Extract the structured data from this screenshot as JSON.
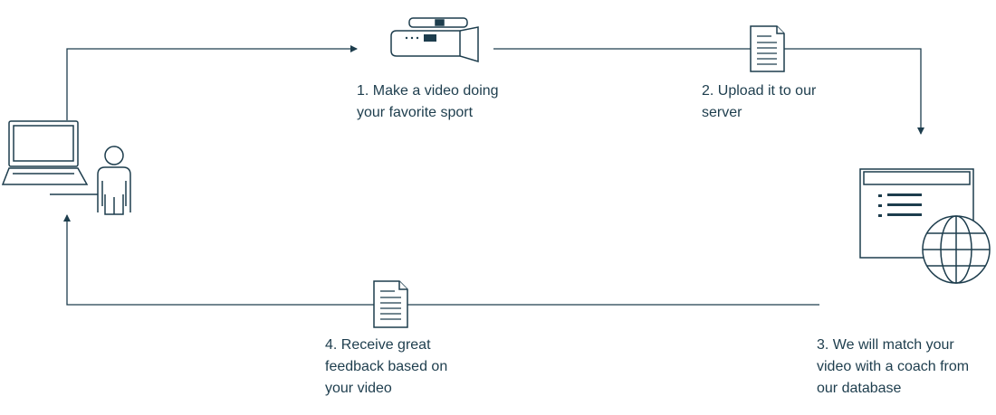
{
  "colors": {
    "stroke": "#1d3d4d",
    "fill": "#ffffff"
  },
  "icons": {
    "user": "laptop-user-icon",
    "camera": "video-camera-icon",
    "upload_doc": "document-icon",
    "database": "web-database-icon",
    "feedback_doc": "document-icon"
  },
  "steps": [
    {
      "lines": [
        "1. Make a video doing",
        "your favorite sport"
      ]
    },
    {
      "lines": [
        "2. Upload it to our",
        "server"
      ]
    },
    {
      "lines": [
        "3. We will match your",
        "video with a coach from",
        "our database"
      ]
    },
    {
      "lines": [
        "4. Receive great",
        "feedback based on",
        "your video"
      ]
    }
  ]
}
